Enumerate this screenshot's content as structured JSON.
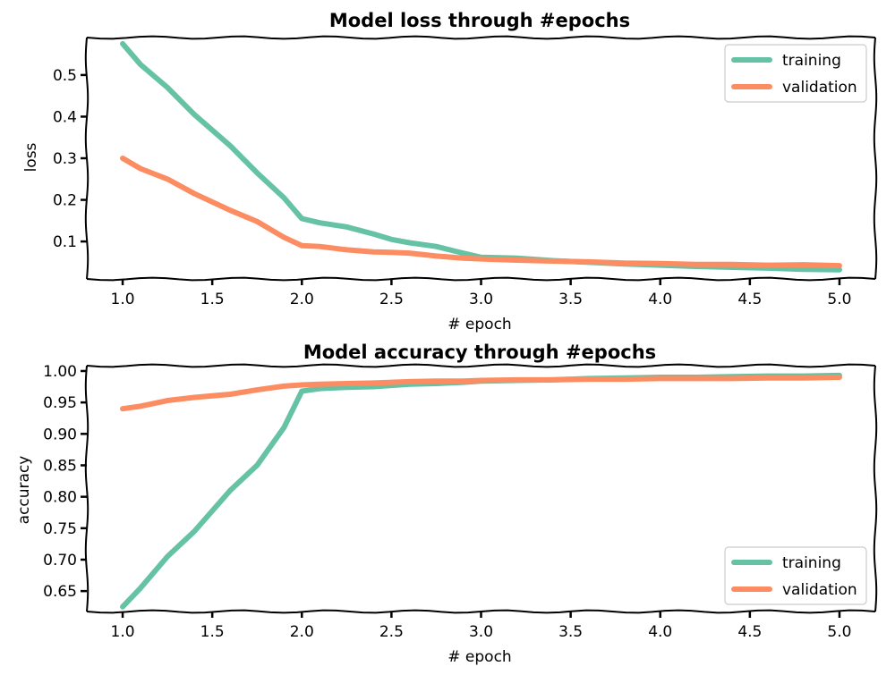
{
  "colors": {
    "training": "#66c2a5",
    "validation": "#fc8d62"
  },
  "chart_data": [
    {
      "type": "line",
      "title": "Model loss through #epochs",
      "xlabel": "# epoch",
      "ylabel": "loss",
      "xlim": [
        0.8,
        5.2
      ],
      "ylim": [
        0.01,
        0.59
      ],
      "xticks": [
        1.0,
        1.5,
        2.0,
        2.5,
        3.0,
        3.5,
        4.0,
        4.5,
        5.0
      ],
      "xtick_labels": [
        "1.0",
        "1.5",
        "2.0",
        "2.5",
        "3.0",
        "3.5",
        "4.0",
        "4.5",
        "5.0"
      ],
      "yticks": [
        0.1,
        0.2,
        0.3,
        0.4,
        0.5
      ],
      "ytick_labels": [
        "0.1",
        "0.2",
        "0.3",
        "0.4",
        "0.5"
      ],
      "legend_position": "top-right",
      "grid": false,
      "series": [
        {
          "name": "training",
          "color": "#66c2a5",
          "x": [
            1.0,
            1.1,
            1.25,
            1.4,
            1.6,
            1.75,
            1.9,
            2.0,
            2.1,
            2.25,
            2.4,
            2.5,
            2.6,
            2.75,
            2.9,
            3.0,
            3.2,
            3.4,
            3.6,
            3.8,
            4.0,
            4.2,
            4.4,
            4.6,
            4.8,
            5.0
          ],
          "y": [
            0.575,
            0.525,
            0.47,
            0.405,
            0.33,
            0.265,
            0.205,
            0.155,
            0.145,
            0.135,
            0.118,
            0.105,
            0.097,
            0.088,
            0.072,
            0.062,
            0.06,
            0.054,
            0.05,
            0.046,
            0.043,
            0.04,
            0.038,
            0.036,
            0.033,
            0.032
          ]
        },
        {
          "name": "validation",
          "color": "#fc8d62",
          "x": [
            1.0,
            1.1,
            1.25,
            1.4,
            1.6,
            1.75,
            1.9,
            2.0,
            2.1,
            2.25,
            2.4,
            2.5,
            2.6,
            2.75,
            2.9,
            3.0,
            3.2,
            3.4,
            3.6,
            3.8,
            4.0,
            4.2,
            4.4,
            4.6,
            4.8,
            5.0
          ],
          "y": [
            0.3,
            0.275,
            0.25,
            0.215,
            0.175,
            0.148,
            0.11,
            0.09,
            0.088,
            0.08,
            0.075,
            0.074,
            0.072,
            0.065,
            0.06,
            0.058,
            0.055,
            0.053,
            0.051,
            0.048,
            0.047,
            0.045,
            0.045,
            0.043,
            0.044,
            0.042
          ]
        }
      ]
    },
    {
      "type": "line",
      "title": "Model accuracy through #epochs",
      "xlabel": "# epoch",
      "ylabel": "accuracy",
      "xlim": [
        0.8,
        5.2
      ],
      "ylim": [
        0.6175,
        1.0085
      ],
      "xticks": [
        1.0,
        1.5,
        2.0,
        2.5,
        3.0,
        3.5,
        4.0,
        4.5,
        5.0
      ],
      "xtick_labels": [
        "1.0",
        "1.5",
        "2.0",
        "2.5",
        "3.0",
        "3.5",
        "4.0",
        "4.5",
        "5.0"
      ],
      "yticks": [
        0.65,
        0.7,
        0.75,
        0.8,
        0.85,
        0.9,
        0.95,
        1.0
      ],
      "ytick_labels": [
        "0.65",
        "0.70",
        "0.75",
        "0.80",
        "0.85",
        "0.90",
        "0.95",
        "1.00"
      ],
      "legend_position": "bottom-right",
      "grid": false,
      "series": [
        {
          "name": "training",
          "color": "#66c2a5",
          "x": [
            1.0,
            1.1,
            1.25,
            1.4,
            1.6,
            1.75,
            1.9,
            2.0,
            2.1,
            2.25,
            2.4,
            2.5,
            2.6,
            2.75,
            2.9,
            3.0,
            3.2,
            3.4,
            3.6,
            3.8,
            4.0,
            4.2,
            4.4,
            4.6,
            4.8,
            5.0
          ],
          "y": [
            0.625,
            0.655,
            0.705,
            0.745,
            0.81,
            0.85,
            0.91,
            0.968,
            0.972,
            0.974,
            0.975,
            0.977,
            0.979,
            0.98,
            0.982,
            0.984,
            0.985,
            0.986,
            0.988,
            0.989,
            0.99,
            0.99,
            0.991,
            0.992,
            0.992,
            0.993
          ]
        },
        {
          "name": "validation",
          "color": "#fc8d62",
          "x": [
            1.0,
            1.1,
            1.25,
            1.4,
            1.6,
            1.75,
            1.9,
            2.0,
            2.1,
            2.25,
            2.4,
            2.5,
            2.6,
            2.75,
            2.9,
            3.0,
            3.2,
            3.4,
            3.6,
            3.8,
            4.0,
            4.2,
            4.4,
            4.6,
            4.8,
            5.0
          ],
          "y": [
            0.94,
            0.944,
            0.953,
            0.958,
            0.963,
            0.97,
            0.976,
            0.978,
            0.979,
            0.98,
            0.981,
            0.982,
            0.983,
            0.984,
            0.984,
            0.985,
            0.986,
            0.986,
            0.987,
            0.987,
            0.988,
            0.988,
            0.988,
            0.989,
            0.989,
            0.99
          ]
        }
      ]
    }
  ]
}
